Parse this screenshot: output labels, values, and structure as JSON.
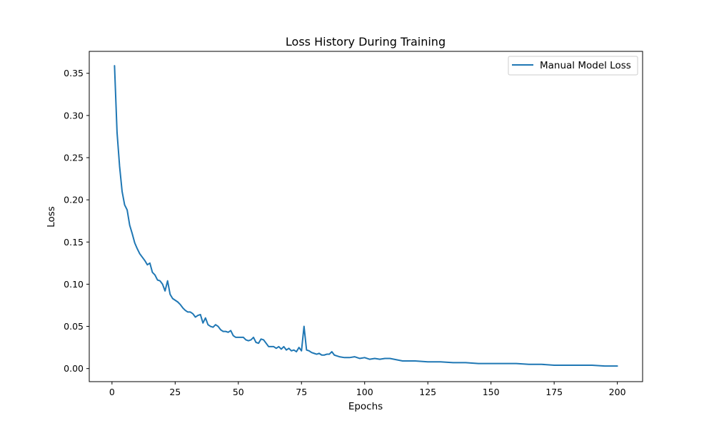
{
  "chart_data": {
    "type": "line",
    "title": "Loss History During Training",
    "xlabel": "Epochs",
    "ylabel": "Loss",
    "xlim": [
      -9,
      210
    ],
    "ylim": [
      -0.0155,
      0.376
    ],
    "xticks": [
      0,
      25,
      50,
      75,
      100,
      125,
      150,
      175,
      200
    ],
    "xtick_labels": [
      "0",
      "25",
      "50",
      "75",
      "100",
      "125",
      "150",
      "175",
      "200"
    ],
    "yticks": [
      0.0,
      0.05,
      0.1,
      0.15,
      0.2,
      0.25,
      0.3,
      0.35
    ],
    "ytick_labels": [
      "0.00",
      "0.05",
      "0.10",
      "0.15",
      "0.20",
      "0.25",
      "0.30",
      "0.35"
    ],
    "grid": false,
    "legend_position": "top-right",
    "color": "#1f77b4",
    "series": [
      {
        "name": "Manual Model Loss",
        "x": [
          1,
          2,
          3,
          4,
          5,
          6,
          7,
          8,
          9,
          10,
          11,
          12,
          13,
          14,
          15,
          16,
          17,
          18,
          19,
          20,
          21,
          22,
          23,
          24,
          25,
          26,
          27,
          28,
          29,
          30,
          31,
          32,
          33,
          34,
          35,
          36,
          37,
          38,
          39,
          40,
          41,
          42,
          43,
          44,
          45,
          46,
          47,
          48,
          49,
          50,
          51,
          52,
          53,
          54,
          55,
          56,
          57,
          58,
          59,
          60,
          61,
          62,
          63,
          64,
          65,
          66,
          67,
          68,
          69,
          70,
          71,
          72,
          73,
          74,
          75,
          76,
          77,
          78,
          79,
          80,
          81,
          82,
          83,
          84,
          85,
          86,
          87,
          88,
          89,
          90,
          92,
          94,
          96,
          98,
          100,
          102,
          104,
          106,
          108,
          110,
          115,
          120,
          125,
          130,
          135,
          140,
          145,
          150,
          155,
          160,
          165,
          170,
          175,
          180,
          185,
          190,
          195,
          200
        ],
        "values": [
          0.359,
          0.28,
          0.24,
          0.21,
          0.194,
          0.188,
          0.17,
          0.16,
          0.149,
          0.142,
          0.136,
          0.132,
          0.128,
          0.123,
          0.125,
          0.114,
          0.111,
          0.105,
          0.104,
          0.1,
          0.092,
          0.104,
          0.088,
          0.083,
          0.081,
          0.079,
          0.076,
          0.072,
          0.069,
          0.067,
          0.067,
          0.065,
          0.061,
          0.063,
          0.064,
          0.054,
          0.06,
          0.052,
          0.05,
          0.049,
          0.052,
          0.05,
          0.046,
          0.044,
          0.044,
          0.043,
          0.045,
          0.039,
          0.037,
          0.037,
          0.037,
          0.037,
          0.034,
          0.033,
          0.034,
          0.037,
          0.031,
          0.03,
          0.035,
          0.034,
          0.03,
          0.026,
          0.026,
          0.026,
          0.024,
          0.026,
          0.023,
          0.026,
          0.022,
          0.024,
          0.021,
          0.022,
          0.02,
          0.025,
          0.021,
          0.05,
          0.022,
          0.021,
          0.019,
          0.018,
          0.017,
          0.018,
          0.016,
          0.016,
          0.017,
          0.017,
          0.02,
          0.016,
          0.015,
          0.014,
          0.013,
          0.013,
          0.014,
          0.012,
          0.013,
          0.011,
          0.012,
          0.011,
          0.012,
          0.012,
          0.009,
          0.009,
          0.008,
          0.008,
          0.007,
          0.007,
          0.006,
          0.006,
          0.006,
          0.006,
          0.005,
          0.005,
          0.004,
          0.004,
          0.004,
          0.004,
          0.003,
          0.003
        ]
      }
    ]
  }
}
